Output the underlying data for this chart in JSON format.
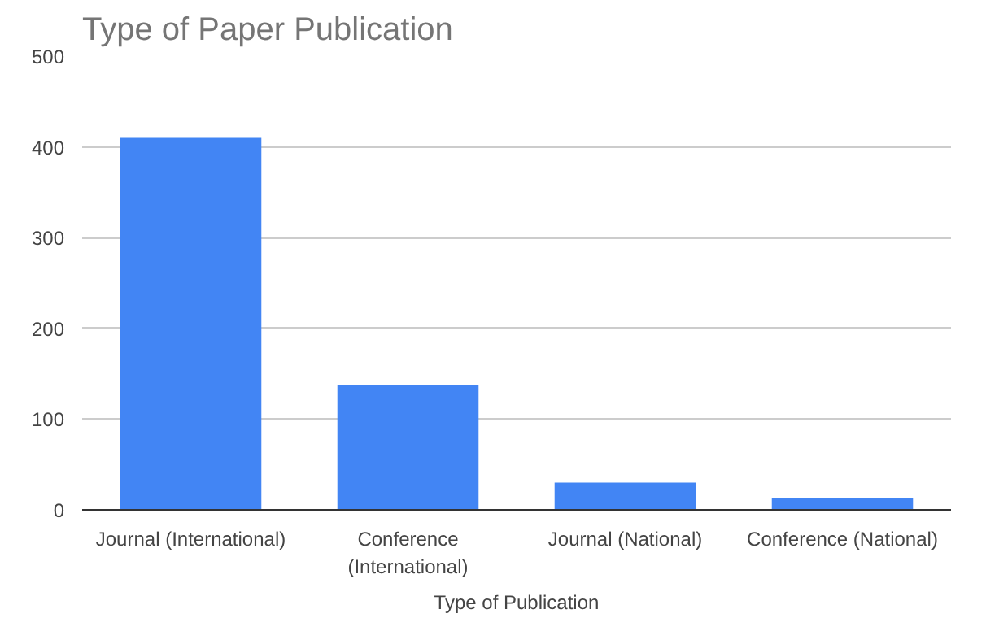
{
  "chart_data": {
    "type": "bar",
    "title": "Type of Paper Publication",
    "xlabel": "Type of Publication",
    "categories": [
      "Journal (International)",
      "Conference (International)",
      "Journal (National)",
      "Conference (National)"
    ],
    "values": [
      410,
      137,
      30,
      13
    ],
    "color": "#4285f4",
    "ylim": [
      0,
      500
    ],
    "yticks": [
      0,
      100,
      200,
      300,
      400,
      500
    ],
    "grid": "y"
  }
}
